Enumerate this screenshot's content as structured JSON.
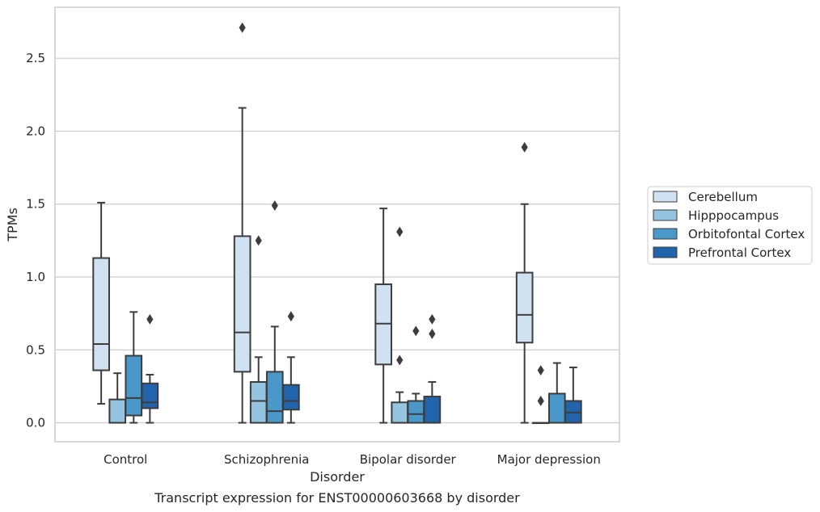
{
  "chart_data": {
    "type": "box",
    "title": "",
    "caption": "Transcript expression for ENST00000603668 by disorder",
    "xlabel": "Disorder",
    "ylabel": "TPMs",
    "ylim": [
      -0.13,
      2.85
    ],
    "yticks": [
      "0.0",
      "0.5",
      "1.0",
      "1.5",
      "2.0",
      "2.5"
    ],
    "grid": "horizontal",
    "legend_position": "right",
    "categories": [
      "Control",
      "Schizophrenia",
      "Bipolar disorder",
      "Major depression"
    ],
    "series": [
      {
        "name": "Cerebellum",
        "color": "#d0e1f2",
        "boxes": [
          {
            "whisker_low": 0.13,
            "q1": 0.36,
            "median": 0.54,
            "q3": 1.13,
            "whisker_high": 1.51,
            "outliers": []
          },
          {
            "whisker_low": 0.0,
            "q1": 0.35,
            "median": 0.62,
            "q3": 1.28,
            "whisker_high": 2.16,
            "outliers": [
              2.71
            ]
          },
          {
            "whisker_low": 0.0,
            "q1": 0.4,
            "median": 0.68,
            "q3": 0.95,
            "whisker_high": 1.47,
            "outliers": []
          },
          {
            "whisker_low": 0.0,
            "q1": 0.55,
            "median": 0.74,
            "q3": 1.03,
            "whisker_high": 1.5,
            "outliers": [
              1.89
            ]
          }
        ]
      },
      {
        "name": "Hipppocampus",
        "color": "#94c4df",
        "boxes": [
          {
            "whisker_low": 0.0,
            "q1": 0.0,
            "median": 0.0,
            "q3": 0.16,
            "whisker_high": 0.34,
            "outliers": []
          },
          {
            "whisker_low": 0.0,
            "q1": 0.0,
            "median": 0.15,
            "q3": 0.28,
            "whisker_high": 0.45,
            "outliers": [
              1.25
            ]
          },
          {
            "whisker_low": 0.0,
            "q1": 0.0,
            "median": 0.0,
            "q3": 0.14,
            "whisker_high": 0.21,
            "outliers": [
              0.43,
              1.31
            ]
          },
          {
            "whisker_low": 0.0,
            "q1": 0.0,
            "median": 0.0,
            "q3": 0.0,
            "whisker_high": 0.0,
            "outliers": [
              0.15,
              0.36
            ]
          }
        ]
      },
      {
        "name": "Orbitofontal Cortex",
        "color": "#4a98c9",
        "boxes": [
          {
            "whisker_low": 0.0,
            "q1": 0.05,
            "median": 0.17,
            "q3": 0.46,
            "whisker_high": 0.76,
            "outliers": []
          },
          {
            "whisker_low": 0.0,
            "q1": 0.0,
            "median": 0.08,
            "q3": 0.35,
            "whisker_high": 0.66,
            "outliers": [
              1.49
            ]
          },
          {
            "whisker_low": 0.0,
            "q1": 0.0,
            "median": 0.06,
            "q3": 0.15,
            "whisker_high": 0.2,
            "outliers": [
              0.63
            ]
          },
          {
            "whisker_low": 0.0,
            "q1": 0.0,
            "median": 0.0,
            "q3": 0.2,
            "whisker_high": 0.41,
            "outliers": []
          }
        ]
      },
      {
        "name": "Prefrontal Cortex",
        "color": "#2164ab",
        "boxes": [
          {
            "whisker_low": 0.0,
            "q1": 0.1,
            "median": 0.14,
            "q3": 0.27,
            "whisker_high": 0.33,
            "outliers": [
              0.71
            ]
          },
          {
            "whisker_low": 0.0,
            "q1": 0.09,
            "median": 0.15,
            "q3": 0.26,
            "whisker_high": 0.45,
            "outliers": [
              0.73
            ]
          },
          {
            "whisker_low": 0.0,
            "q1": 0.0,
            "median": 0.0,
            "q3": 0.18,
            "whisker_high": 0.28,
            "outliers": [
              0.61,
              0.71
            ]
          },
          {
            "whisker_low": 0.0,
            "q1": 0.0,
            "median": 0.07,
            "q3": 0.15,
            "whisker_high": 0.38,
            "outliers": []
          }
        ]
      }
    ]
  }
}
